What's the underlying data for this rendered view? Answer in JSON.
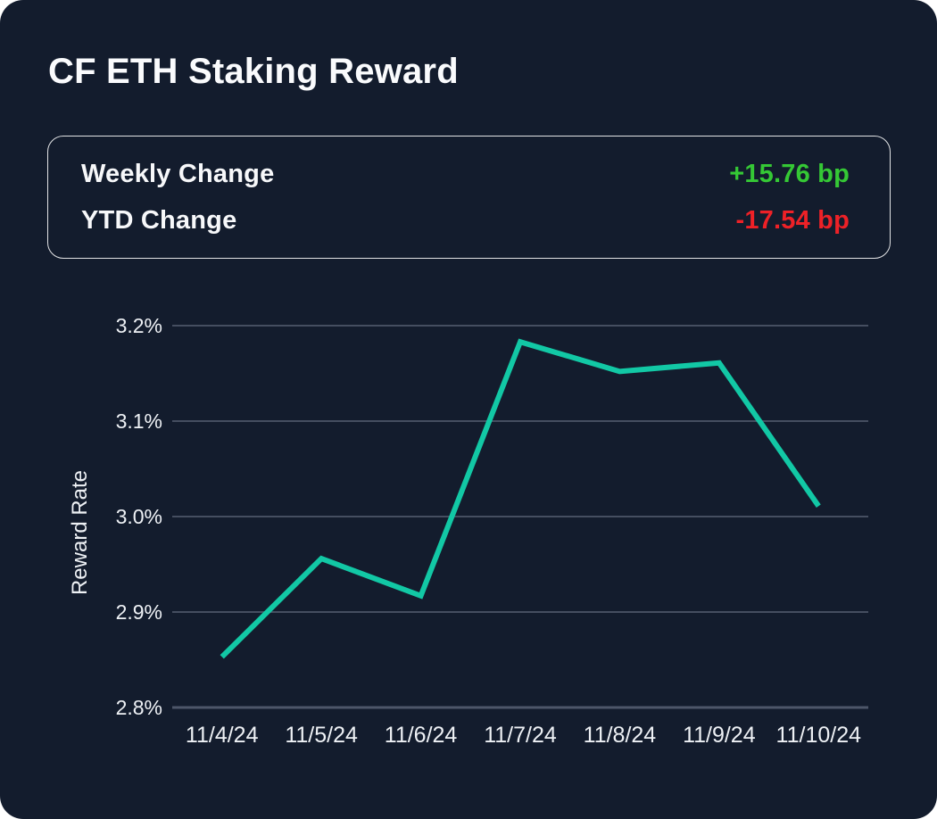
{
  "card": {
    "title": "CF ETH Staking Reward",
    "background": "#131c2d"
  },
  "stats": {
    "rows": [
      {
        "label": "Weekly Change",
        "value": "+15.76 bp",
        "color": "#35c835"
      },
      {
        "label": "YTD Change",
        "value": "-17.54 bp",
        "color": "#ee2127"
      }
    ]
  },
  "chart_data": {
    "type": "line",
    "title": "CF ETH Staking Reward",
    "x": [
      "11/4/24",
      "11/5/24",
      "11/6/24",
      "11/7/24",
      "11/8/24",
      "11/9/24",
      "11/10/24"
    ],
    "series": [
      {
        "name": "Reward Rate",
        "values": [
          2.853,
          2.956,
          2.917,
          3.183,
          3.152,
          3.161,
          3.011
        ]
      }
    ],
    "xlabel": "",
    "ylabel": "Reward Rate",
    "ylim": [
      2.8,
      3.2
    ],
    "ytick_values": [
      3.2,
      3.1,
      3.0,
      2.9,
      2.8
    ],
    "ytick_labels": [
      "3.2%",
      "3.1%",
      "3.0%",
      "2.9%",
      "2.8%"
    ],
    "unit": "%",
    "grid": "horizontal",
    "legend": "none",
    "line_color": "#12c8a5",
    "grid_color": "#454e60",
    "axis_color": "#4d5669",
    "tick_text_color": "#eef1f5"
  }
}
